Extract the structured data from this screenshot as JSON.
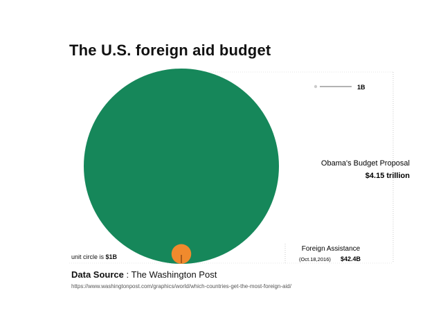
{
  "chart_data": {
    "type": "bubble",
    "title": "The U.S. foreign aid budget",
    "series": [
      {
        "name": "Obama's Budget Proposal",
        "value_label": "$4.15 trillion",
        "value": 4150,
        "unit": "B",
        "color": "#16875a"
      },
      {
        "name": "Foreign Assistance",
        "sublabel": "(Oct.18,2016)",
        "value_label": "$42.4B",
        "value": 42.4,
        "unit": "B",
        "color": "#f08a2d"
      },
      {
        "name": "",
        "value_label": "1B",
        "value": 1,
        "unit": "B",
        "color": "#cccccc"
      }
    ],
    "unit_note": {
      "text": "unit circle is ",
      "value": "$1B"
    }
  },
  "source": {
    "label": "Data Source",
    "separator": ":",
    "name": "The Washington Post",
    "url": "https://www.washingtonpost.com/graphics/world/which-countries-get-the-most-foreign-aid/"
  }
}
